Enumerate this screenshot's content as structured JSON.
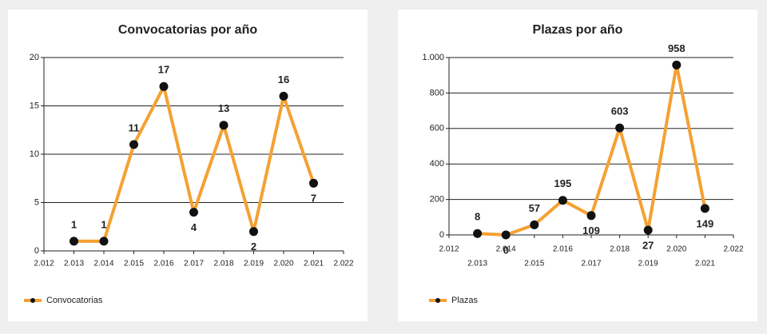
{
  "chart_data": [
    {
      "type": "line",
      "title": "Convocatorias por año",
      "x": [
        2013,
        2014,
        2015,
        2016,
        2017,
        2018,
        2019,
        2020,
        2021
      ],
      "series": [
        {
          "name": "Convocatorias",
          "color": "#f4a133",
          "values": [
            1,
            1,
            11,
            17,
            4,
            13,
            2,
            16,
            7
          ]
        }
      ],
      "xlim": [
        2012,
        2022
      ],
      "xticks": [
        {
          "value": 2012,
          "label": "2.012"
        },
        {
          "value": 2013,
          "label": "2.013"
        },
        {
          "value": 2014,
          "label": "2.014"
        },
        {
          "value": 2015,
          "label": "2.015"
        },
        {
          "value": 2016,
          "label": "2.016"
        },
        {
          "value": 2017,
          "label": "2.017"
        },
        {
          "value": 2018,
          "label": "2.018"
        },
        {
          "value": 2019,
          "label": "2.019"
        },
        {
          "value": 2020,
          "label": "2.020"
        },
        {
          "value": 2021,
          "label": "2.021"
        },
        {
          "value": 2022,
          "label": "2.022"
        }
      ],
      "ylim": [
        0,
        20
      ],
      "yticks": [
        0,
        5,
        10,
        15,
        20
      ],
      "grid": true,
      "legend": "bottom-left"
    },
    {
      "type": "line",
      "title": "Plazas por año",
      "x": [
        2013,
        2014,
        2015,
        2016,
        2017,
        2018,
        2019,
        2020,
        2021
      ],
      "series": [
        {
          "name": "Plazas",
          "color": "#f4a133",
          "values": [
            8,
            0,
            57,
            195,
            109,
            603,
            27,
            958,
            149
          ]
        }
      ],
      "xlim": [
        2012,
        2022
      ],
      "xticks": [
        {
          "value": 2012,
          "label": "2.012"
        },
        {
          "value": 2013,
          "label": "2.013"
        },
        {
          "value": 2014,
          "label": "2.014"
        },
        {
          "value": 2015,
          "label": "2.015"
        },
        {
          "value": 2016,
          "label": "2.016"
        },
        {
          "value": 2017,
          "label": "2.017"
        },
        {
          "value": 2018,
          "label": "2.018"
        },
        {
          "value": 2019,
          "label": "2.019"
        },
        {
          "value": 2020,
          "label": "2.020"
        },
        {
          "value": 2021,
          "label": "2.021"
        },
        {
          "value": 2022,
          "label": "2.022"
        }
      ],
      "ylim": [
        0,
        1000
      ],
      "yticks": [
        0,
        200,
        400,
        600,
        800,
        {
          "value": 1000,
          "label": "1.000"
        }
      ],
      "grid": true,
      "legend": "bottom-left"
    }
  ]
}
